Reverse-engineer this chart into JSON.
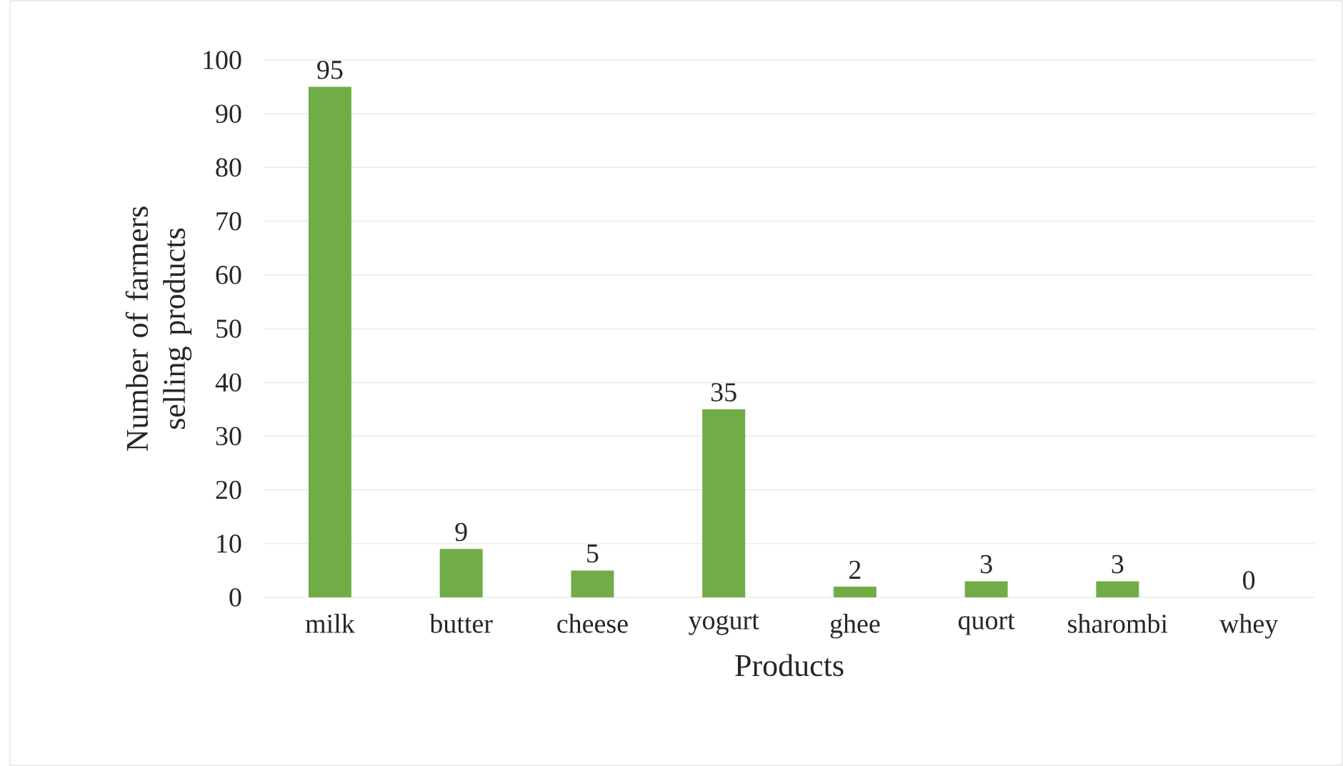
{
  "chart_data": {
    "type": "bar",
    "xlabel": "Products",
    "ylabel": "Number of farmers selling products",
    "categories": [
      "milk",
      "butter",
      "cheese",
      "yogurt",
      "ghee",
      "quort",
      "sharombi",
      "whey"
    ],
    "values": [
      95,
      9,
      5,
      35,
      2,
      3,
      3,
      0
    ],
    "color": "#70ad47",
    "ylim": [
      0,
      100
    ],
    "yticks": [
      0,
      10,
      20,
      30,
      40,
      50,
      60,
      70,
      80,
      90,
      100
    ],
    "grid": "y",
    "data_labels": true
  }
}
